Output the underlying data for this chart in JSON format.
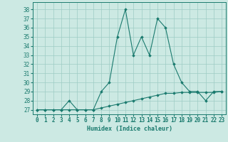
{
  "xlabel": "Humidex (Indice chaleur)",
  "background_color": "#cce9e3",
  "line_color": "#1a7a6e",
  "x_values": [
    0,
    1,
    2,
    3,
    4,
    5,
    6,
    7,
    8,
    9,
    10,
    11,
    12,
    13,
    14,
    15,
    16,
    17,
    18,
    19,
    20,
    21,
    22,
    23
  ],
  "y_humidex": [
    27,
    27,
    27,
    27,
    28,
    27,
    27,
    27,
    29,
    30,
    35,
    38,
    33,
    35,
    33,
    37,
    36,
    32,
    30,
    29,
    29,
    28,
    29,
    29
  ],
  "y_baseline": [
    27,
    27,
    27,
    27,
    27,
    27,
    27,
    27,
    27.2,
    27.4,
    27.6,
    27.8,
    28,
    28.2,
    28.4,
    28.6,
    28.8,
    28.8,
    28.9,
    28.9,
    28.9,
    28.9,
    28.9,
    29
  ],
  "ylim": [
    26.5,
    38.8
  ],
  "yticks": [
    27,
    28,
    29,
    30,
    31,
    32,
    33,
    34,
    35,
    36,
    37,
    38
  ],
  "xlim": [
    -0.5,
    23.5
  ],
  "xticks": [
    0,
    1,
    2,
    3,
    4,
    5,
    6,
    7,
    8,
    9,
    10,
    11,
    12,
    13,
    14,
    15,
    16,
    17,
    18,
    19,
    20,
    21,
    22,
    23
  ],
  "grid_color": "#9dccc4",
  "marker": "D",
  "markersize": 1.8,
  "linewidth": 0.8
}
